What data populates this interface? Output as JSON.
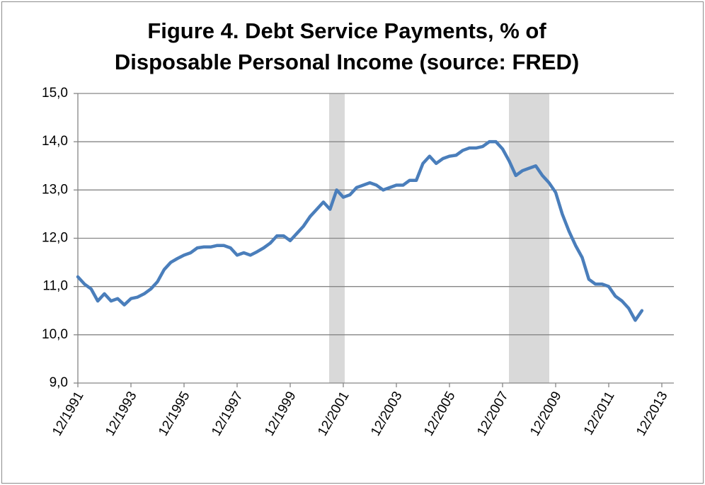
{
  "chart_data": {
    "type": "line",
    "title": "Figure 4. Debt Service Payments, % of Disposable Personal Income (source: FRED)",
    "categories": [
      "12/1991",
      null,
      null,
      null,
      null,
      null,
      null,
      null,
      "12/1993",
      null,
      null,
      null,
      null,
      null,
      null,
      null,
      "12/1995",
      null,
      null,
      null,
      null,
      null,
      null,
      null,
      "12/1997",
      null,
      null,
      null,
      null,
      null,
      null,
      null,
      "12/1999",
      null,
      null,
      null,
      null,
      null,
      null,
      null,
      "12/2001",
      null,
      null,
      null,
      null,
      null,
      null,
      null,
      "12/2003",
      null,
      null,
      null,
      null,
      null,
      null,
      null,
      "12/2005",
      null,
      null,
      null,
      null,
      null,
      null,
      null,
      "12/2007",
      null,
      null,
      null,
      null,
      null,
      null,
      null,
      "12/2009",
      null,
      null,
      null,
      null,
      null,
      null,
      null,
      "12/2011",
      null,
      null,
      null,
      null,
      null,
      null,
      null,
      "12/2013"
    ],
    "series": [
      {
        "name": null,
        "color": "#4a7ebb",
        "values": [
          11.2,
          11.05,
          10.95,
          10.7,
          10.85,
          10.7,
          10.75,
          10.62,
          10.75,
          10.78,
          10.85,
          10.95,
          11.1,
          11.35,
          11.5,
          11.58,
          11.65,
          11.7,
          11.8,
          11.82,
          11.82,
          11.85,
          11.85,
          11.8,
          11.65,
          11.7,
          11.65,
          11.72,
          11.8,
          11.9,
          12.05,
          12.05,
          11.95,
          12.1,
          12.25,
          12.45,
          12.6,
          12.75,
          12.6,
          13.0,
          12.85,
          12.9,
          13.05,
          13.1,
          13.15,
          13.1,
          13.0,
          13.05,
          13.1,
          13.1,
          13.2,
          13.2,
          13.55,
          13.7,
          13.55,
          13.65,
          13.7,
          13.72,
          13.82,
          13.87,
          13.87,
          13.9,
          14.0,
          14.0,
          13.85,
          13.6,
          13.3,
          13.4,
          13.45,
          13.5,
          13.3,
          13.15,
          12.95,
          12.5,
          12.15,
          11.85,
          11.6,
          11.15,
          11.05,
          11.05,
          11.0,
          10.8,
          10.7,
          10.55,
          10.3,
          10.5,
          null,
          null,
          null
        ]
      }
    ],
    "ylim": [
      9,
      15
    ],
    "yticks": [
      {
        "value": 9,
        "label": "9,0"
      },
      {
        "value": 10,
        "label": "10,0"
      },
      {
        "value": 11,
        "label": "11,0"
      },
      {
        "value": 12,
        "label": "12,0"
      },
      {
        "value": 13,
        "label": "13,0"
      },
      {
        "value": 14,
        "label": "14,0"
      },
      {
        "value": 15,
        "label": "15,0"
      }
    ],
    "grid": true
  }
}
